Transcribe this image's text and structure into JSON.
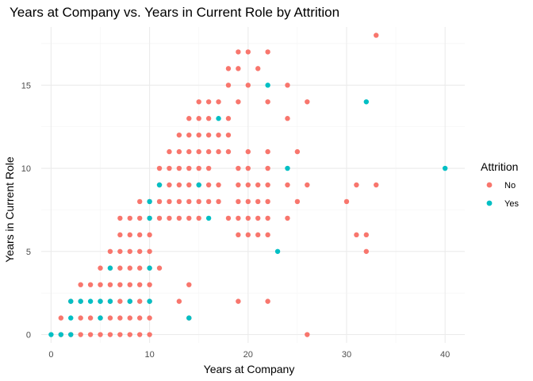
{
  "chart_data": {
    "type": "scatter",
    "title": "Years at Company vs. Years in Current Role by Attrition",
    "xlabel": "Years at Company",
    "ylabel": "Years in Current Role",
    "xlim": [
      -1,
      42
    ],
    "ylim": [
      -0.5,
      18.5
    ],
    "x_ticks": [
      0,
      10,
      20,
      30,
      40
    ],
    "y_ticks": [
      0,
      5,
      10,
      15
    ],
    "x_minor_ticks": [
      5,
      15,
      25,
      35
    ],
    "y_minor_ticks": [
      2.5,
      7.5,
      12.5,
      17.5
    ],
    "grid": true,
    "legend": {
      "title": "Attrition",
      "position": "right"
    },
    "series": [
      {
        "name": "No",
        "color": "#F8766D",
        "points": [
          [
            1,
            0
          ],
          [
            2,
            0
          ],
          [
            3,
            0
          ],
          [
            4,
            0
          ],
          [
            5,
            0
          ],
          [
            6,
            0
          ],
          [
            7,
            0
          ],
          [
            8,
            0
          ],
          [
            9,
            0
          ],
          [
            10,
            0
          ],
          [
            26,
            0
          ],
          [
            1,
            1
          ],
          [
            3,
            1
          ],
          [
            4,
            1
          ],
          [
            5,
            1
          ],
          [
            6,
            1
          ],
          [
            7,
            1
          ],
          [
            8,
            1
          ],
          [
            9,
            1
          ],
          [
            10,
            1
          ],
          [
            14,
            1
          ],
          [
            2,
            2
          ],
          [
            3,
            2
          ],
          [
            5,
            2
          ],
          [
            6,
            2
          ],
          [
            7,
            2
          ],
          [
            8,
            2
          ],
          [
            9,
            2
          ],
          [
            10,
            2
          ],
          [
            13,
            2
          ],
          [
            19,
            2
          ],
          [
            22,
            2
          ],
          [
            3,
            3
          ],
          [
            4,
            3
          ],
          [
            5,
            3
          ],
          [
            6,
            3
          ],
          [
            7,
            3
          ],
          [
            8,
            3
          ],
          [
            9,
            3
          ],
          [
            10,
            3
          ],
          [
            5,
            4
          ],
          [
            6,
            4
          ],
          [
            7,
            4
          ],
          [
            8,
            4
          ],
          [
            9,
            4
          ],
          [
            10,
            4
          ],
          [
            11,
            4
          ],
          [
            14,
            3
          ],
          [
            6,
            5
          ],
          [
            7,
            5
          ],
          [
            8,
            5
          ],
          [
            9,
            5
          ],
          [
            10,
            5
          ],
          [
            32,
            5
          ],
          [
            7,
            6
          ],
          [
            8,
            6
          ],
          [
            9,
            6
          ],
          [
            10,
            6
          ],
          [
            19,
            6
          ],
          [
            20,
            6
          ],
          [
            21,
            6
          ],
          [
            22,
            6
          ],
          [
            31,
            6
          ],
          [
            32,
            6
          ],
          [
            7,
            7
          ],
          [
            8,
            7
          ],
          [
            9,
            7
          ],
          [
            10,
            7
          ],
          [
            11,
            7
          ],
          [
            12,
            7
          ],
          [
            13,
            7
          ],
          [
            14,
            7
          ],
          [
            15,
            7
          ],
          [
            18,
            7
          ],
          [
            19,
            7
          ],
          [
            20,
            7
          ],
          [
            21,
            7
          ],
          [
            22,
            7
          ],
          [
            24,
            7
          ],
          [
            9,
            8
          ],
          [
            10,
            8
          ],
          [
            11,
            8
          ],
          [
            12,
            8
          ],
          [
            13,
            8
          ],
          [
            14,
            8
          ],
          [
            15,
            8
          ],
          [
            16,
            8
          ],
          [
            17,
            8
          ],
          [
            19,
            8
          ],
          [
            20,
            8
          ],
          [
            21,
            8
          ],
          [
            22,
            8
          ],
          [
            25,
            8
          ],
          [
            30,
            8
          ],
          [
            11,
            9
          ],
          [
            12,
            9
          ],
          [
            13,
            9
          ],
          [
            14,
            9
          ],
          [
            15,
            9
          ],
          [
            16,
            9
          ],
          [
            17,
            9
          ],
          [
            19,
            9
          ],
          [
            20,
            9
          ],
          [
            21,
            9
          ],
          [
            22,
            9
          ],
          [
            24,
            9
          ],
          [
            26,
            9
          ],
          [
            31,
            9
          ],
          [
            33,
            9
          ],
          [
            11,
            10
          ],
          [
            12,
            10
          ],
          [
            13,
            10
          ],
          [
            14,
            10
          ],
          [
            15,
            10
          ],
          [
            16,
            10
          ],
          [
            19,
            10
          ],
          [
            20,
            10
          ],
          [
            22,
            10
          ],
          [
            12,
            11
          ],
          [
            13,
            11
          ],
          [
            14,
            11
          ],
          [
            15,
            11
          ],
          [
            16,
            11
          ],
          [
            17,
            11
          ],
          [
            18,
            11
          ],
          [
            20,
            11
          ],
          [
            22,
            11
          ],
          [
            25,
            11
          ],
          [
            13,
            12
          ],
          [
            14,
            12
          ],
          [
            15,
            12
          ],
          [
            16,
            12
          ],
          [
            17,
            12
          ],
          [
            18,
            12
          ],
          [
            14,
            13
          ],
          [
            15,
            13
          ],
          [
            16,
            13
          ],
          [
            18,
            13
          ],
          [
            24,
            13
          ],
          [
            15,
            14
          ],
          [
            16,
            14
          ],
          [
            17,
            14
          ],
          [
            19,
            14
          ],
          [
            22,
            14
          ],
          [
            26,
            14
          ],
          [
            18,
            15
          ],
          [
            20,
            15
          ],
          [
            24,
            15
          ],
          [
            18,
            16
          ],
          [
            19,
            16
          ],
          [
            21,
            16
          ],
          [
            19,
            17
          ],
          [
            20,
            17
          ],
          [
            22,
            17
          ],
          [
            33,
            18
          ]
        ]
      },
      {
        "name": "Yes",
        "color": "#00BFC4",
        "points": [
          [
            0,
            0
          ],
          [
            1,
            0
          ],
          [
            2,
            0
          ],
          [
            2,
            1
          ],
          [
            2,
            2
          ],
          [
            3,
            2
          ],
          [
            4,
            2
          ],
          [
            5,
            2
          ],
          [
            6,
            2
          ],
          [
            8,
            2
          ],
          [
            10,
            2
          ],
          [
            5,
            1
          ],
          [
            14,
            1
          ],
          [
            6,
            4
          ],
          [
            10,
            4
          ],
          [
            10,
            7
          ],
          [
            16,
            7
          ],
          [
            10,
            8
          ],
          [
            11,
            9
          ],
          [
            15,
            9
          ],
          [
            24,
            10
          ],
          [
            40,
            10
          ],
          [
            23,
            5
          ],
          [
            17,
            13
          ],
          [
            32,
            14
          ],
          [
            22,
            15
          ]
        ]
      }
    ]
  }
}
